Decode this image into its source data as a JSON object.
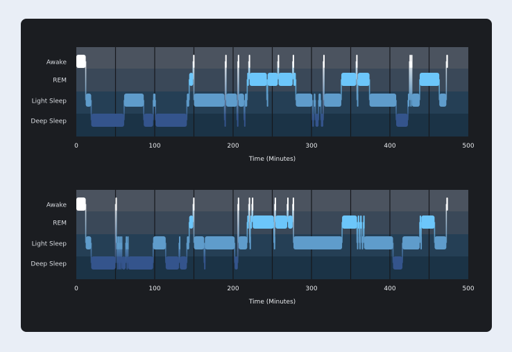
{
  "chart_data": [
    {
      "type": "hypnogram",
      "xlabel": "Time (Minutes)",
      "xlim": [
        0,
        500
      ],
      "xticks": [
        0,
        100,
        200,
        300,
        400,
        500
      ],
      "grid_x_every": 50,
      "stages": [
        "Awake",
        "REM",
        "Light Sleep",
        "Deep Sleep"
      ],
      "segments": [
        [
          "Awake",
          0,
          12
        ],
        [
          "Light Sleep",
          12,
          19
        ],
        [
          "Deep Sleep",
          19,
          61
        ],
        [
          "Light Sleep",
          61,
          86
        ],
        [
          "Deep Sleep",
          86,
          98
        ],
        [
          "Light Sleep",
          98,
          101
        ],
        [
          "Deep Sleep",
          101,
          141
        ],
        [
          "Light Sleep",
          141,
          144
        ],
        [
          "REM",
          144,
          149
        ],
        [
          "Awake",
          149,
          150
        ],
        [
          "Light Sleep",
          150,
          189
        ],
        [
          "Deep Sleep",
          189,
          190
        ],
        [
          "Awake",
          190,
          191
        ],
        [
          "Light Sleep",
          191,
          205
        ],
        [
          "Deep Sleep",
          205,
          206
        ],
        [
          "Awake",
          206,
          207
        ],
        [
          "Light Sleep",
          207,
          214
        ],
        [
          "Deep Sleep",
          214,
          215
        ],
        [
          "Light Sleep",
          215,
          218
        ],
        [
          "REM",
          218,
          220
        ],
        [
          "Awake",
          220,
          221
        ],
        [
          "REM",
          221,
          243
        ],
        [
          "Light Sleep",
          243,
          244
        ],
        [
          "REM",
          244,
          257
        ],
        [
          "Awake",
          257,
          258
        ],
        [
          "REM",
          258,
          276
        ],
        [
          "Awake",
          276,
          277
        ],
        [
          "REM",
          277,
          280
        ],
        [
          "Light Sleep",
          280,
          301
        ],
        [
          "Deep Sleep",
          301,
          303
        ],
        [
          "Light Sleep",
          303,
          305
        ],
        [
          "Deep Sleep",
          305,
          309
        ],
        [
          "Light Sleep",
          309,
          312
        ],
        [
          "Deep Sleep",
          312,
          315
        ],
        [
          "Awake",
          315,
          316
        ],
        [
          "Light Sleep",
          316,
          338
        ],
        [
          "REM",
          338,
          357
        ],
        [
          "Awake",
          357,
          358
        ],
        [
          "Light Sleep",
          358,
          359
        ],
        [
          "REM",
          359,
          374
        ],
        [
          "Light Sleep",
          374,
          408
        ],
        [
          "Deep Sleep",
          408,
          423
        ],
        [
          "Light Sleep",
          423,
          425
        ],
        [
          "Awake",
          425,
          426
        ],
        [
          "Light Sleep",
          426,
          427
        ],
        [
          "Awake",
          427,
          428
        ],
        [
          "Light Sleep",
          428,
          438
        ],
        [
          "REM",
          438,
          463
        ],
        [
          "Light Sleep",
          463,
          472
        ],
        [
          "Awake",
          472,
          474
        ]
      ]
    },
    {
      "type": "hypnogram",
      "xlabel": "Time (Minutes)",
      "xlim": [
        0,
        500
      ],
      "xticks": [
        0,
        100,
        200,
        300,
        400,
        500
      ],
      "grid_x_every": 50,
      "stages": [
        "Awake",
        "REM",
        "Light Sleep",
        "Deep Sleep"
      ],
      "segments": [
        [
          "Awake",
          0,
          12
        ],
        [
          "Light Sleep",
          12,
          19
        ],
        [
          "Deep Sleep",
          19,
          50
        ],
        [
          "Awake",
          50,
          51
        ],
        [
          "Light Sleep",
          51,
          52
        ],
        [
          "Deep Sleep",
          52,
          53
        ],
        [
          "Light Sleep",
          53,
          54
        ],
        [
          "Deep Sleep",
          54,
          55
        ],
        [
          "Light Sleep",
          55,
          56
        ],
        [
          "Deep Sleep",
          56,
          57
        ],
        [
          "Light Sleep",
          57,
          58
        ],
        [
          "Deep Sleep",
          58,
          63
        ],
        [
          "Light Sleep",
          63,
          64
        ],
        [
          "Deep Sleep",
          64,
          65
        ],
        [
          "Light Sleep",
          65,
          66
        ],
        [
          "Deep Sleep",
          66,
          98
        ],
        [
          "Light Sleep",
          98,
          114
        ],
        [
          "Deep Sleep",
          114,
          131
        ],
        [
          "Light Sleep",
          131,
          132
        ],
        [
          "Deep Sleep",
          132,
          141
        ],
        [
          "Light Sleep",
          141,
          144
        ],
        [
          "REM",
          144,
          149
        ],
        [
          "Awake",
          149,
          150
        ],
        [
          "Light Sleep",
          150,
          163
        ],
        [
          "Deep Sleep",
          163,
          164
        ],
        [
          "Light Sleep",
          164,
          202
        ],
        [
          "Deep Sleep",
          202,
          206
        ],
        [
          "Awake",
          206,
          207
        ],
        [
          "Light Sleep",
          207,
          218
        ],
        [
          "REM",
          218,
          220
        ],
        [
          "Awake",
          220,
          221
        ],
        [
          "Light Sleep",
          221,
          222
        ],
        [
          "REM",
          222,
          224
        ],
        [
          "Awake",
          224,
          225
        ],
        [
          "REM",
          225,
          252
        ],
        [
          "Light Sleep",
          252,
          253
        ],
        [
          "Awake",
          253,
          254
        ],
        [
          "REM",
          254,
          269
        ],
        [
          "Awake",
          269,
          270
        ],
        [
          "REM",
          270,
          276
        ],
        [
          "Awake",
          276,
          277
        ],
        [
          "Light Sleep",
          277,
          339
        ],
        [
          "REM",
          339,
          358
        ],
        [
          "Light Sleep",
          358,
          359
        ],
        [
          "REM",
          359,
          361
        ],
        [
          "Light Sleep",
          361,
          362
        ],
        [
          "REM",
          362,
          364
        ],
        [
          "Light Sleep",
          364,
          366
        ],
        [
          "REM",
          366,
          367
        ],
        [
          "Light Sleep",
          367,
          404
        ],
        [
          "Deep Sleep",
          404,
          416
        ],
        [
          "Light Sleep",
          416,
          438
        ],
        [
          "REM",
          438,
          439
        ],
        [
          "Light Sleep",
          439,
          440
        ],
        [
          "REM",
          440,
          457
        ],
        [
          "Light Sleep",
          457,
          472
        ],
        [
          "Awake",
          472,
          474
        ]
      ]
    }
  ],
  "colors": {
    "Awake": "#ffffff",
    "REM": "#6cc6fa",
    "Light Sleep": "#5f9ccb",
    "Deep Sleep": "#34548c",
    "band_Awake": "#4b535f",
    "band_REM": "#3a4858",
    "band_Light Sleep": "#253f55",
    "band_Deep Sleep": "#1b3346",
    "card": "#1b1d21",
    "page": "#e9eef6"
  }
}
